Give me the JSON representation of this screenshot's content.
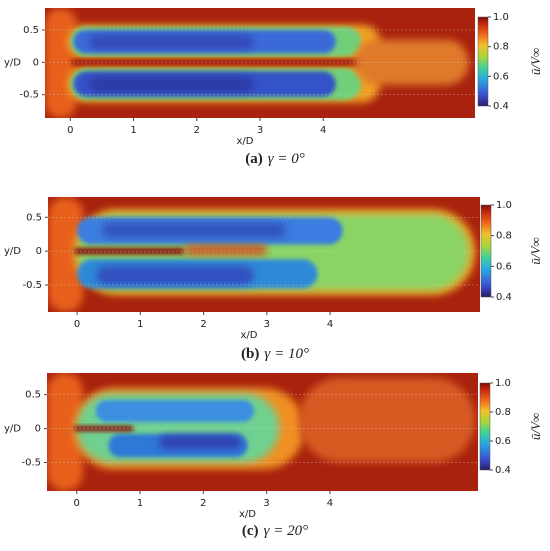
{
  "chart_data": [
    {
      "type": "heatmap",
      "label": "(a)",
      "caption": "γ = 0°",
      "xlabel": "x/D",
      "ylabel": "y/D",
      "xlim": [
        -0.4,
        6.4
      ],
      "ylim": [
        -0.86,
        0.84
      ],
      "xticks": [
        0,
        1,
        2,
        3,
        4
      ],
      "yticks": [
        -0.5,
        0,
        0.5
      ],
      "grid": true,
      "colorbar_label": "ū/V∞",
      "colorbar_lim": [
        0.4,
        1.0
      ],
      "colorbar_ticks": [
        0.4,
        0.6,
        0.8,
        {
          "value": 1.0,
          "label": "1.0"
        }
      ]
    },
    {
      "type": "heatmap",
      "label": "(b)",
      "caption": "γ = 10°",
      "xlabel": "x/D",
      "ylabel": "y/D",
      "xlim": [
        -0.46,
        6.37
      ],
      "ylim": [
        -0.9,
        0.8
      ],
      "xticks": [
        0,
        1,
        2,
        3,
        4
      ],
      "yticks": [
        -0.5,
        0,
        0.5
      ],
      "grid": true,
      "colorbar_label": "ū/V∞",
      "colorbar_lim": [
        0.4,
        1.0
      ],
      "colorbar_ticks": [
        0.4,
        0.6,
        0.8,
        {
          "value": 1.0,
          "label": "1.0"
        }
      ]
    },
    {
      "type": "heatmap",
      "label": "(c)",
      "caption": "γ = 20°",
      "xlabel": "x/D",
      "ylabel": "y/D",
      "xlim": [
        -0.47,
        6.34
      ],
      "ylim": [
        -0.92,
        0.82
      ],
      "xticks": [
        0,
        1,
        2,
        3,
        4
      ],
      "yticks": [
        -0.5,
        0,
        0.5
      ],
      "grid": true,
      "colorbar_label": "ū/V∞",
      "colorbar_lim": [
        0.4,
        1.0
      ],
      "colorbar_ticks": [
        0.4,
        0.6,
        0.8,
        {
          "value": 1.0,
          "label": "1.0"
        }
      ]
    }
  ]
}
